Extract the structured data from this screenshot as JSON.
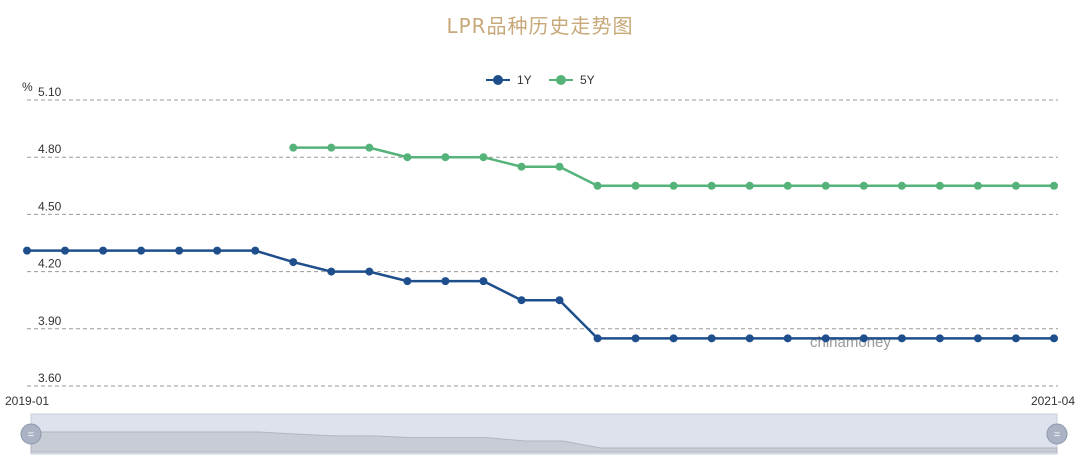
{
  "chart_data": {
    "type": "line",
    "title": "LPR品种历史走势图",
    "ylabel": "%",
    "xlabel": "",
    "ylim": [
      3.6,
      5.1
    ],
    "y_ticks": [
      "3.60",
      "3.90",
      "4.20",
      "4.50",
      "4.80",
      "5.10"
    ],
    "grid": true,
    "legend_position": "top-center",
    "x_start_label": "2019-01",
    "x_end_label": "2021-04",
    "watermark": "chinamoney",
    "series": [
      {
        "name": "1Y",
        "color": "#1f4e8c",
        "values": [
          4.31,
          4.31,
          4.31,
          4.31,
          4.31,
          4.31,
          4.31,
          4.25,
          4.2,
          4.2,
          4.15,
          4.15,
          4.15,
          4.05,
          4.05,
          3.85,
          3.85,
          3.85,
          3.85,
          3.85,
          3.85,
          3.85,
          3.85,
          3.85,
          3.85,
          3.85,
          3.85,
          3.85
        ]
      },
      {
        "name": "5Y",
        "color": "#55b37a",
        "values": [
          null,
          null,
          null,
          null,
          null,
          null,
          null,
          4.85,
          4.85,
          4.85,
          4.8,
          4.8,
          4.8,
          4.75,
          4.75,
          4.65,
          4.65,
          4.65,
          4.65,
          4.65,
          4.65,
          4.65,
          4.65,
          4.65,
          4.65,
          4.65,
          4.65,
          4.65
        ]
      }
    ]
  },
  "slider": {
    "start_handle": "=",
    "end_handle": "="
  }
}
